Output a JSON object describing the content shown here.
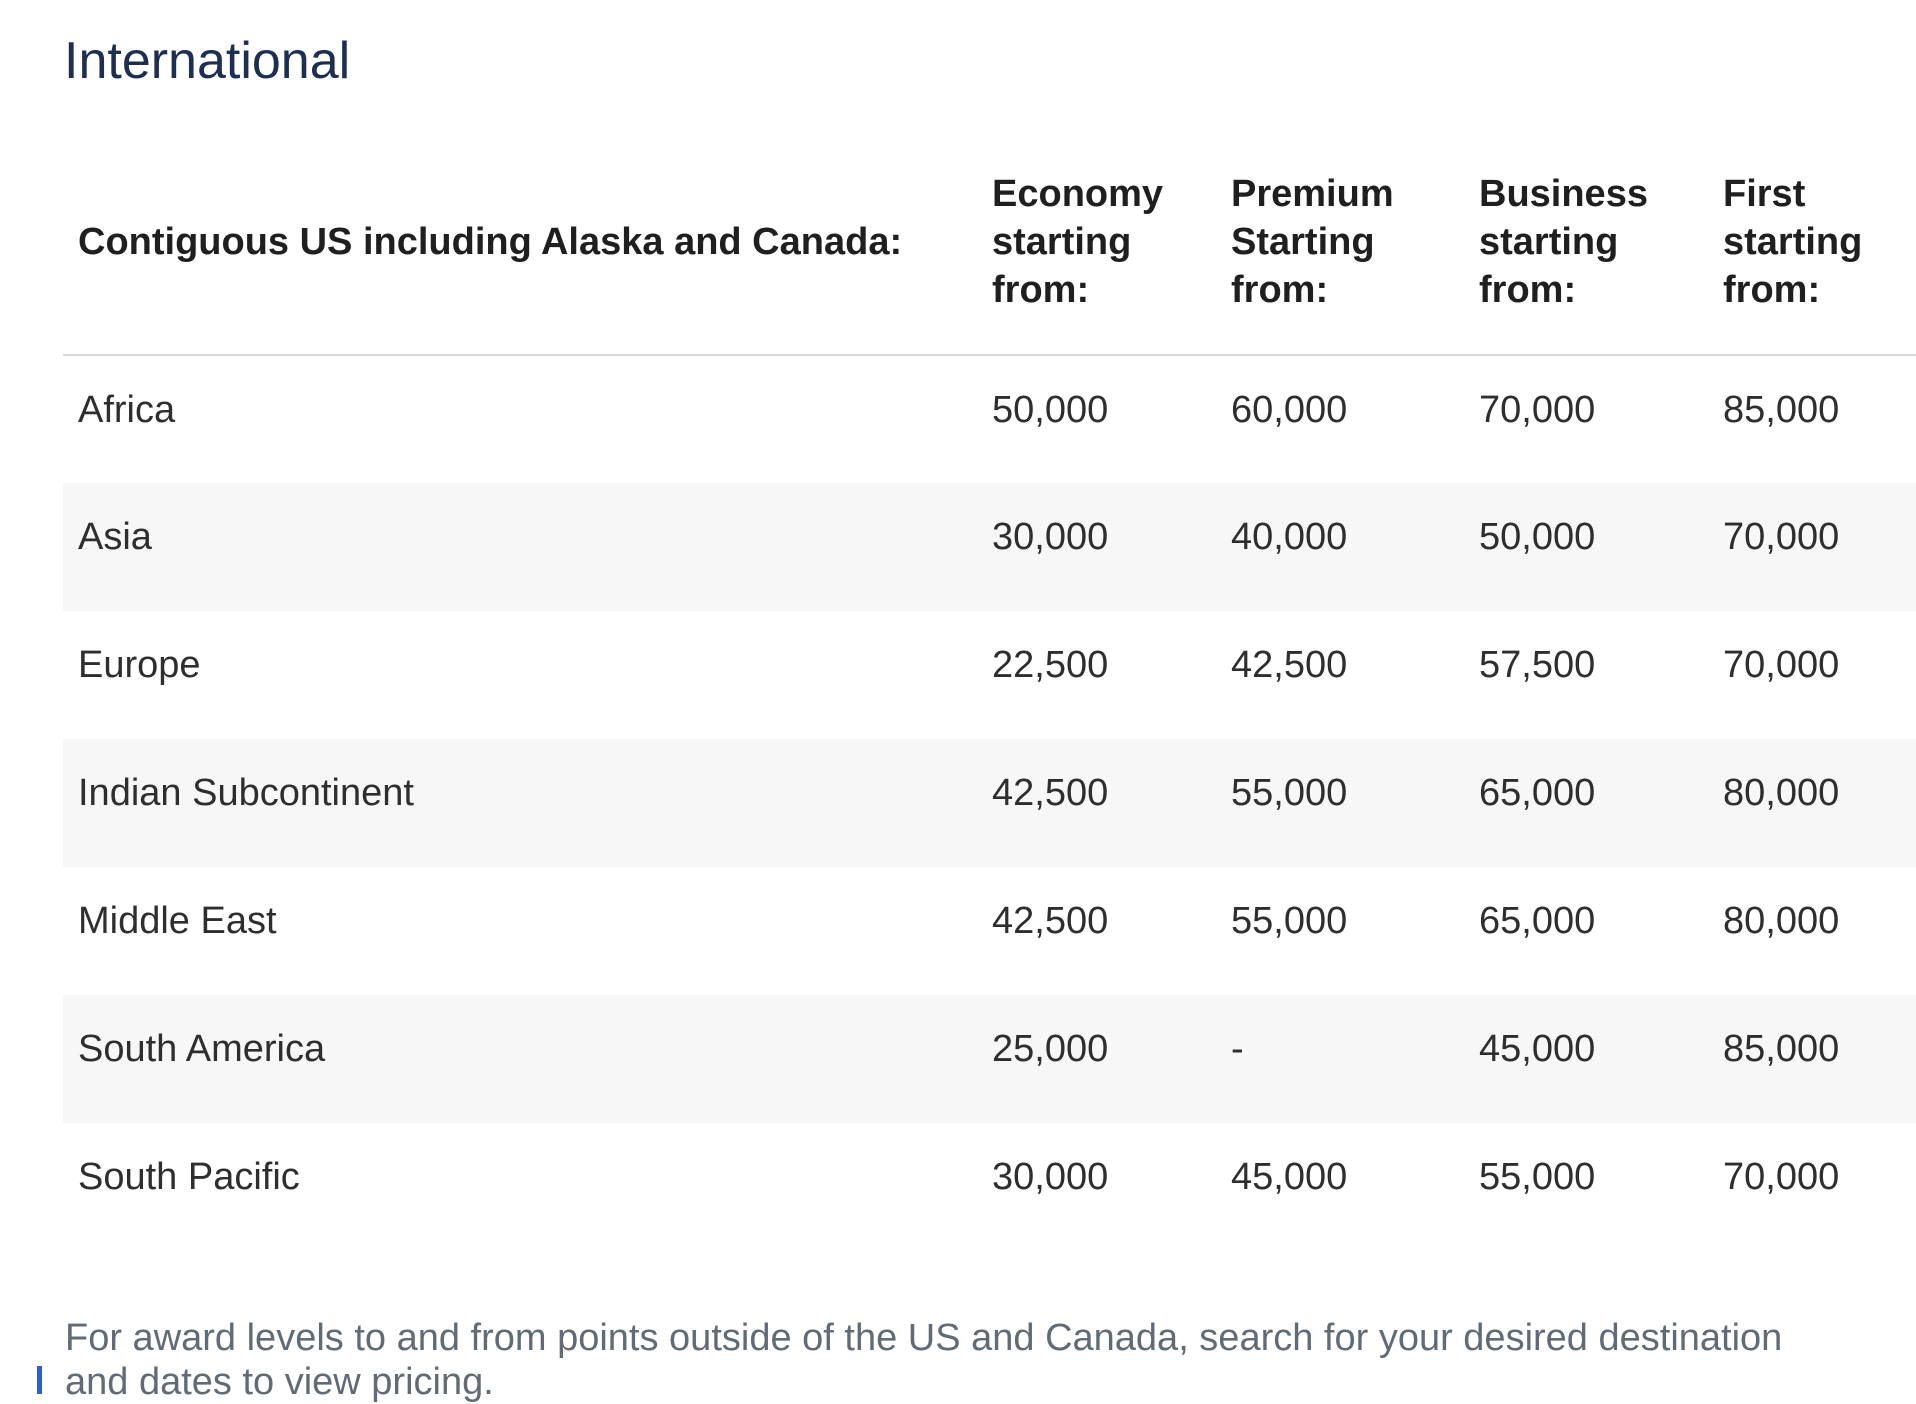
{
  "page": {
    "title": "International",
    "footnote": "For award levels to and from points outside of the US and Canada, search for your desired destination and dates to view pricing."
  },
  "table": {
    "columns": [
      "Contiguous US including Alaska and Canada:",
      "Economy starting from:",
      "Premium Starting from:",
      "Business starting from:",
      "First starting from:"
    ],
    "rows": [
      {
        "region": "Africa",
        "economy": "50,000",
        "premium": "60,000",
        "business": "70,000",
        "first": "85,000"
      },
      {
        "region": "Asia",
        "economy": "30,000",
        "premium": "40,000",
        "business": "50,000",
        "first": "70,000"
      },
      {
        "region": "Europe",
        "economy": "22,500",
        "premium": "42,500",
        "business": "57,500",
        "first": "70,000"
      },
      {
        "region": "Indian Subcontinent",
        "economy": "42,500",
        "premium": "55,000",
        "business": "65,000",
        "first": "80,000"
      },
      {
        "region": "Middle East",
        "economy": "42,500",
        "premium": "55,000",
        "business": "65,000",
        "first": "80,000"
      },
      {
        "region": "South America",
        "economy": "25,000",
        "premium": "-",
        "business": "45,000",
        "first": "85,000"
      },
      {
        "region": "South Pacific",
        "economy": "30,000",
        "premium": "45,000",
        "business": "55,000",
        "first": "70,000"
      }
    ]
  },
  "colors": {
    "title_text": "#1c2e52",
    "header_text": "#1f1f1f",
    "body_text": "#2e2e2e",
    "muted_text": "#606b76",
    "row_alt_bg": "#f7f7f7",
    "divider": "#d8d8d8",
    "accent": "#2f5fd7"
  }
}
